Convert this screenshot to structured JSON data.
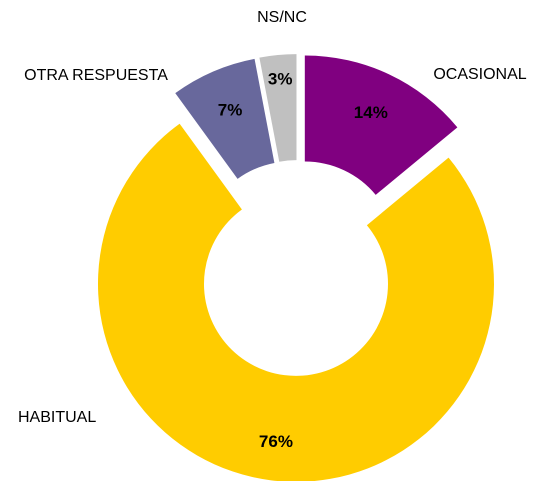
{
  "chart_data": {
    "type": "donut",
    "categories": [
      "OCASIONAL",
      "HABITUAL",
      "OTRA RESPUESTA",
      "NS/NC"
    ],
    "values": [
      14,
      76,
      7,
      3
    ],
    "value_labels": [
      "14%",
      "76%",
      "7%",
      "3%"
    ],
    "colors": [
      "#800080",
      "#ffcc00",
      "#68689c",
      "#c0c0c0"
    ]
  }
}
